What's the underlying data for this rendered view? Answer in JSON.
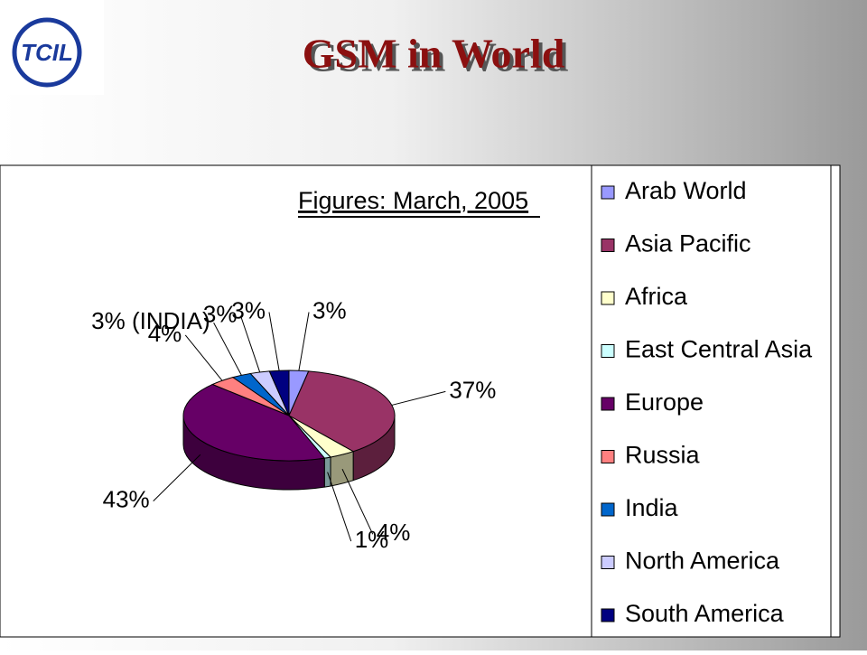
{
  "logo": "TCIL",
  "chart_data": {
    "type": "pie",
    "title": "GSM in World",
    "subtitle": "Figures: March, 2005",
    "categories": [
      "Arab World",
      "Asia Pacific",
      "Africa",
      "East Central Asia",
      "Europe",
      "Russia",
      "India",
      "North America",
      "South America"
    ],
    "values": [
      3,
      37,
      4,
      1,
      43,
      4,
      3,
      3,
      3
    ],
    "value_labels": [
      "3%",
      "37%",
      "4%",
      "1%",
      "43%",
      "4%",
      "3% (INDIA)",
      "3%",
      "3%"
    ],
    "colors": [
      "#9999ff",
      "#993366",
      "#ffffcc",
      "#ccffff",
      "#660066",
      "#ff8080",
      "#0066cc",
      "#ccccff",
      "#000080"
    ]
  }
}
